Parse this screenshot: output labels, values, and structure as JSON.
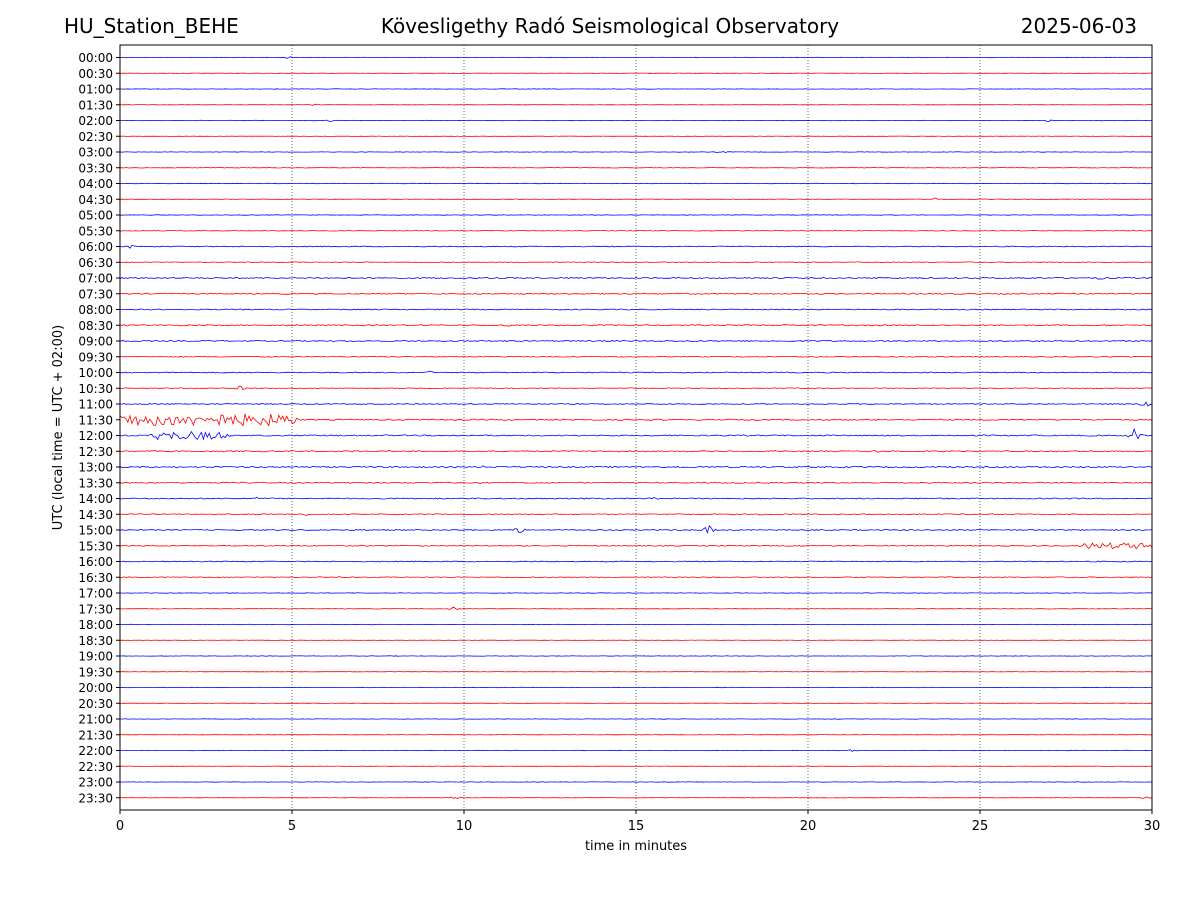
{
  "header": {
    "station": "HU_Station_BEHE",
    "observatory": "Kövesligethy Radó Seismological Observatory",
    "date": "2025-06-03"
  },
  "chart_data": {
    "type": "line",
    "xlabel": "time in minutes",
    "ylabel": "UTC (local time = UTC + 02:00)",
    "xlim": [
      0,
      30
    ],
    "xticks": [
      0,
      5,
      10,
      15,
      20,
      25,
      30
    ],
    "grid": "vertical dotted lines at 5-minute ticks",
    "colors": {
      "even_rows": "#0000ff",
      "odd_rows": "#ff0000"
    },
    "rows": [
      {
        "label": "00:00",
        "noise": 0.3,
        "events": [
          {
            "t": 4.9,
            "amp": 1.5
          }
        ]
      },
      {
        "label": "00:30",
        "noise": 0.3,
        "events": []
      },
      {
        "label": "01:00",
        "noise": 0.3,
        "events": []
      },
      {
        "label": "01:30",
        "noise": 0.3,
        "events": [
          {
            "t": 5.6,
            "amp": 1.5
          }
        ]
      },
      {
        "label": "02:00",
        "noise": 0.3,
        "events": [
          {
            "t": 6.1,
            "amp": 1.5
          },
          {
            "t": 27.0,
            "amp": 1.5
          }
        ]
      },
      {
        "label": "02:30",
        "noise": 0.3,
        "events": []
      },
      {
        "label": "03:00",
        "noise": 0.3,
        "events": [
          {
            "t": 17.5,
            "amp": 2
          }
        ]
      },
      {
        "label": "03:30",
        "noise": 0.4,
        "events": []
      },
      {
        "label": "04:00",
        "noise": 0.4,
        "events": []
      },
      {
        "label": "04:30",
        "noise": 0.4,
        "events": [
          {
            "t": 23.7,
            "amp": 1.5
          }
        ]
      },
      {
        "label": "05:00",
        "noise": 0.4,
        "events": []
      },
      {
        "label": "05:30",
        "noise": 0.5,
        "events": []
      },
      {
        "label": "06:00",
        "noise": 0.7,
        "events": [
          {
            "t": 0.3,
            "amp": 2
          }
        ]
      },
      {
        "label": "06:30",
        "noise": 0.6,
        "events": []
      },
      {
        "label": "07:00",
        "noise": 1.0,
        "events": [
          {
            "t": 28.5,
            "amp": 2
          }
        ]
      },
      {
        "label": "07:30",
        "noise": 0.9,
        "events": []
      },
      {
        "label": "08:00",
        "noise": 0.8,
        "events": []
      },
      {
        "label": "08:30",
        "noise": 1.0,
        "events": [
          {
            "t": 11.3,
            "amp": 2
          }
        ]
      },
      {
        "label": "09:00",
        "noise": 0.9,
        "events": []
      },
      {
        "label": "09:30",
        "noise": 0.7,
        "events": []
      },
      {
        "label": "10:00",
        "noise": 0.8,
        "events": [
          {
            "t": 9.0,
            "amp": 1.5
          }
        ]
      },
      {
        "label": "10:30",
        "noise": 0.6,
        "events": [
          {
            "t": 3.5,
            "amp": 3
          }
        ]
      },
      {
        "label": "11:00",
        "noise": 0.7,
        "events": [
          {
            "t": 29.8,
            "amp": 5
          }
        ]
      },
      {
        "label": "11:30",
        "noise": 1.0,
        "events": [
          {
            "t": 0.0,
            "amp": 6,
            "duration": 5
          }
        ]
      },
      {
        "label": "12:00",
        "noise": 1.0,
        "events": [
          {
            "t": 1.0,
            "amp": 4,
            "duration": 2
          },
          {
            "t": 29.5,
            "amp": 8
          }
        ]
      },
      {
        "label": "12:30",
        "noise": 0.9,
        "events": [
          {
            "t": 6.8,
            "amp": 2
          },
          {
            "t": 22.0,
            "amp": 2
          }
        ]
      },
      {
        "label": "13:00",
        "noise": 1.1,
        "events": [
          {
            "t": 10.5,
            "amp": 2
          }
        ]
      },
      {
        "label": "13:30",
        "noise": 0.9,
        "events": []
      },
      {
        "label": "14:00",
        "noise": 0.9,
        "events": [
          {
            "t": 4.0,
            "amp": 2
          },
          {
            "t": 15.5,
            "amp": 2
          }
        ]
      },
      {
        "label": "14:30",
        "noise": 0.8,
        "events": [
          {
            "t": 5.4,
            "amp": 2
          },
          {
            "t": 18.7,
            "amp": 2
          }
        ]
      },
      {
        "label": "15:00",
        "noise": 0.8,
        "events": [
          {
            "t": 11.6,
            "amp": 4
          },
          {
            "t": 17.1,
            "amp": 6
          }
        ]
      },
      {
        "label": "15:30",
        "noise": 0.8,
        "events": [
          {
            "t": 28.0,
            "amp": 3,
            "duration": 2
          }
        ]
      },
      {
        "label": "16:00",
        "noise": 0.7,
        "events": []
      },
      {
        "label": "16:30",
        "noise": 0.7,
        "events": []
      },
      {
        "label": "17:00",
        "noise": 0.4,
        "events": []
      },
      {
        "label": "17:30",
        "noise": 0.4,
        "events": [
          {
            "t": 9.7,
            "amp": 3
          }
        ]
      },
      {
        "label": "18:00",
        "noise": 0.3,
        "events": []
      },
      {
        "label": "18:30",
        "noise": 0.3,
        "events": []
      },
      {
        "label": "19:00",
        "noise": 0.3,
        "events": []
      },
      {
        "label": "19:30",
        "noise": 0.3,
        "events": []
      },
      {
        "label": "20:00",
        "noise": 0.3,
        "events": []
      },
      {
        "label": "20:30",
        "noise": 0.3,
        "events": []
      },
      {
        "label": "21:00",
        "noise": 0.3,
        "events": []
      },
      {
        "label": "21:30",
        "noise": 0.3,
        "events": []
      },
      {
        "label": "22:00",
        "noise": 0.3,
        "events": [
          {
            "t": 21.3,
            "amp": 1.5
          }
        ]
      },
      {
        "label": "22:30",
        "noise": 0.3,
        "events": []
      },
      {
        "label": "23:00",
        "noise": 0.3,
        "events": []
      },
      {
        "label": "23:30",
        "noise": 0.3,
        "events": [
          {
            "t": 9.7,
            "amp": 2
          },
          {
            "t": 29.8,
            "amp": 1.5
          }
        ]
      }
    ]
  }
}
